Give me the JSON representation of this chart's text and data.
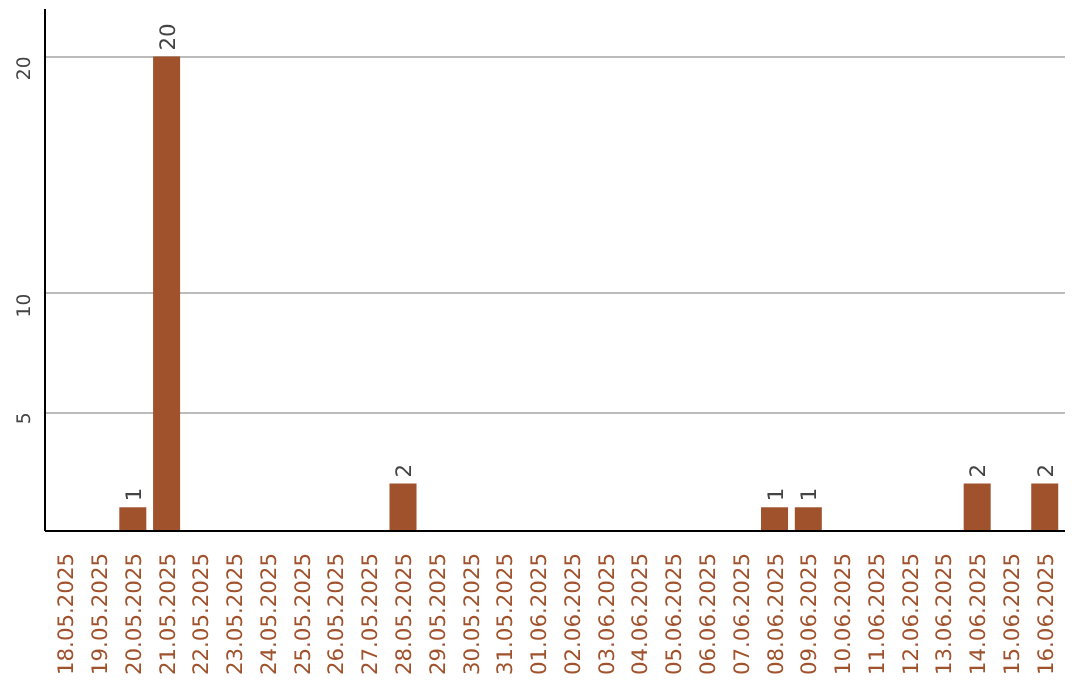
{
  "chart_data": {
    "type": "bar",
    "categories": [
      "18.05.2025",
      "19.05.2025",
      "20.05.2025",
      "21.05.2025",
      "22.05.2025",
      "23.05.2025",
      "24.05.2025",
      "25.05.2025",
      "26.05.2025",
      "27.05.2025",
      "28.05.2025",
      "29.05.2025",
      "30.05.2025",
      "31.05.2025",
      "01.06.2025",
      "02.06.2025",
      "03.06.2025",
      "04.06.2025",
      "05.06.2025",
      "06.06.2025",
      "07.06.2025",
      "08.06.2025",
      "09.06.2025",
      "10.06.2025",
      "11.06.2025",
      "12.06.2025",
      "13.06.2025",
      "14.06.2025",
      "15.06.2025",
      "16.06.2025"
    ],
    "values": [
      0,
      0,
      1,
      20,
      0,
      0,
      0,
      0,
      0,
      0,
      2,
      0,
      0,
      0,
      0,
      0,
      0,
      0,
      0,
      0,
      0,
      1,
      1,
      0,
      0,
      0,
      0,
      2,
      0,
      2
    ],
    "value_labels": [
      null,
      null,
      "1",
      "20",
      null,
      null,
      null,
      null,
      null,
      null,
      "2",
      null,
      null,
      null,
      null,
      null,
      null,
      null,
      null,
      null,
      null,
      "1",
      "1",
      null,
      null,
      null,
      null,
      "2",
      null,
      "2"
    ],
    "color": "#a0522d",
    "ylim": [
      0,
      22
    ],
    "yticks": [
      5,
      10,
      20
    ],
    "grid": "y"
  }
}
